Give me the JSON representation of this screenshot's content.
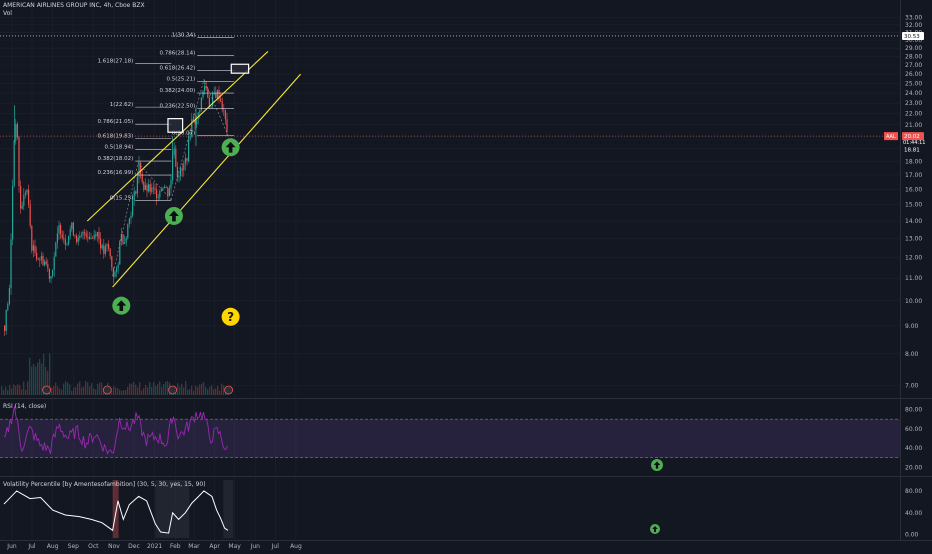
{
  "header": {
    "title": "AMERICAN AIRLINES GROUP INC, 4h, Cboe BZX",
    "volume_label": "Vol"
  },
  "colors": {
    "background": "#131722",
    "grid": "#1e222d",
    "up": "#26a69a",
    "down": "#ef5350",
    "channel": "#f5e63a",
    "fib": "#d1d4dc",
    "rsi": "#9c27b0",
    "rsi_band": "#7e57c2",
    "vp": "#ffffff",
    "arrow": "#4caf50",
    "question": "#ffd600"
  },
  "chart_data": [
    {
      "type": "candlestick",
      "title": "AMERICAN AIRLINES GROUP INC, 4h, Cboe BZX",
      "y_scale": "log",
      "ylim": [
        6.4,
        33.5
      ],
      "y_ticks": [
        7.0,
        8.0,
        9.0,
        10.0,
        11.0,
        12.0,
        13.0,
        14.0,
        15.0,
        16.0,
        17.0,
        18.0,
        19.0,
        20.0,
        21.0,
        22.0,
        23.0,
        24.0,
        25.0,
        26.0,
        27.0,
        28.0,
        29.0,
        30.0,
        31.0,
        32.0,
        33.0
      ],
      "x_ticks": [
        "Jun",
        "Jul",
        "Aug",
        "Sep",
        "Oct",
        "Nov",
        "Dec",
        "2021",
        "Feb",
        "Mar",
        "Apr",
        "May",
        "Jun",
        "Jul",
        "Aug"
      ],
      "price_series": {
        "name": "AAL",
        "points": [
          [
            "2020-05-20",
            9.0
          ],
          [
            "2020-05-28",
            10.6
          ],
          [
            "2020-06-05",
            22.0
          ],
          [
            "2020-06-08",
            19.8
          ],
          [
            "2020-06-12",
            14.5
          ],
          [
            "2020-06-22",
            16.2
          ],
          [
            "2020-06-30",
            12.5
          ],
          [
            "2020-07-10",
            12.0
          ],
          [
            "2020-07-20",
            11.8
          ],
          [
            "2020-07-28",
            11.0
          ],
          [
            "2020-08-05",
            12.6
          ],
          [
            "2020-08-10",
            13.7
          ],
          [
            "2020-08-20",
            12.8
          ],
          [
            "2020-08-28",
            13.7
          ],
          [
            "2020-09-08",
            12.8
          ],
          [
            "2020-09-18",
            13.4
          ],
          [
            "2020-09-28",
            13.0
          ],
          [
            "2020-10-05",
            13.5
          ],
          [
            "2020-10-15",
            12.2
          ],
          [
            "2020-10-22",
            12.6
          ],
          [
            "2020-10-30",
            11.2
          ],
          [
            "2020-11-06",
            11.3
          ],
          [
            "2020-11-09",
            13.2
          ],
          [
            "2020-11-16",
            12.9
          ],
          [
            "2020-11-24",
            14.3
          ],
          [
            "2020-12-03",
            16.1
          ],
          [
            "2020-12-08",
            17.8
          ],
          [
            "2020-12-15",
            16.0
          ],
          [
            "2020-12-22",
            16.0
          ],
          [
            "2021-01-05",
            15.7
          ],
          [
            "2021-01-12",
            16.4
          ],
          [
            "2021-01-20",
            15.8
          ],
          [
            "2021-01-26",
            16.8
          ],
          [
            "2021-01-28",
            20.2
          ],
          [
            "2021-02-02",
            17.1
          ],
          [
            "2021-02-10",
            17.2
          ],
          [
            "2021-02-18",
            18.5
          ],
          [
            "2021-02-26",
            21.8
          ],
          [
            "2021-03-04",
            21.2
          ],
          [
            "2021-03-10",
            23.0
          ],
          [
            "2021-03-16",
            24.8
          ],
          [
            "2021-03-19",
            24.4
          ],
          [
            "2021-03-25",
            22.4
          ],
          [
            "2021-03-29",
            23.8
          ],
          [
            "2021-04-06",
            24.0
          ],
          [
            "2021-04-12",
            22.6
          ],
          [
            "2021-04-19",
            20.5
          ],
          [
            "2021-04-21",
            20.02
          ]
        ]
      },
      "channel": {
        "upper": [
          [
            "2020-09-22",
            14.0
          ],
          [
            "2021-06-20",
            28.6
          ]
        ],
        "lower": [
          [
            "2020-10-30",
            10.6
          ],
          [
            "2021-08-08",
            26.0
          ]
        ]
      },
      "fib_sets": [
        {
          "x_range": [
            "2020-12-03",
            "2021-01-26"
          ],
          "levels": [
            {
              "label": "1(22.62)",
              "value": 22.62
            },
            {
              "label": "0.786(21.05)",
              "value": 21.05
            },
            {
              "label": "0.618(19.83)",
              "value": 19.83
            },
            {
              "label": "0.5(18.94)",
              "value": 18.94
            },
            {
              "label": "0.382(18.02)",
              "value": 18.02
            },
            {
              "label": "0.236(16.99)",
              "value": 16.99
            },
            {
              "label": "0(15.25)",
              "value": 15.25
            }
          ],
          "extension": {
            "label": "1.618(27.18)",
            "value": 27.18
          }
        },
        {
          "x_range": [
            "2021-03-06",
            "2021-04-30"
          ],
          "levels": [
            {
              "label": "1(30.34)",
              "value": 30.34
            },
            {
              "label": "0.786(28.14)",
              "value": 28.14
            },
            {
              "label": "0.618(26.42)",
              "value": 26.42
            },
            {
              "label": "0.5(25.21)",
              "value": 25.21
            },
            {
              "label": "0.382(24.00)",
              "value": 24.0
            },
            {
              "label": "0.236(22.50)",
              "value": 22.5
            },
            {
              "label": "0(20.07)",
              "value": 20.07
            }
          ]
        }
      ],
      "target_boxes": [
        {
          "x_range": [
            "2021-01-21",
            "2021-02-12"
          ],
          "y_range": [
            20.35,
            21.55
          ]
        },
        {
          "x_range": [
            "2021-04-26",
            "2021-05-22"
          ],
          "y_range": [
            26.1,
            27.1
          ]
        }
      ],
      "buy_arrows": [
        [
          "2020-11-09",
          9.8
        ],
        [
          "2021-01-27",
          14.3
        ],
        [
          "2021-04-22",
          19.1
        ]
      ],
      "question_mark": [
        "2021-04-22",
        9.35
      ],
      "earnings_markers": [
        "2020-07-23",
        "2020-10-22",
        "2021-01-28",
        "2021-04-22"
      ],
      "price_labels": [
        {
          "symbol": "AAL",
          "value": "20.02",
          "countdown": "01:44:11",
          "y": 20.02
        },
        {
          "value": "18.81",
          "y": 18.93
        },
        {
          "value": "30.53",
          "y": 30.53
        }
      ]
    },
    {
      "type": "line",
      "title": "RSI (14, close)",
      "ylim": [
        12,
        90
      ],
      "y_ticks": [
        20.0,
        40.0,
        60.0,
        80.0
      ],
      "band": [
        30,
        70
      ],
      "series": [
        {
          "name": "RSI (14, close)",
          "points": [
            [
              "2020-05-20",
              45
            ],
            [
              "2020-06-05",
              83
            ],
            [
              "2020-06-15",
              40
            ],
            [
              "2020-06-28",
              60
            ],
            [
              "2020-07-12",
              44
            ],
            [
              "2020-07-28",
              38
            ],
            [
              "2020-08-10",
              64
            ],
            [
              "2020-08-24",
              50
            ],
            [
              "2020-09-06",
              58
            ],
            [
              "2020-09-20",
              45
            ],
            [
              "2020-10-04",
              55
            ],
            [
              "2020-10-18",
              40
            ],
            [
              "2020-10-30",
              34
            ],
            [
              "2020-11-09",
              70
            ],
            [
              "2020-11-22",
              60
            ],
            [
              "2020-12-06",
              72
            ],
            [
              "2020-12-18",
              48
            ],
            [
              "2021-01-05",
              52
            ],
            [
              "2021-01-20",
              44
            ],
            [
              "2021-01-28",
              77
            ],
            [
              "2021-02-06",
              52
            ],
            [
              "2021-02-22",
              64
            ],
            [
              "2021-03-04",
              76
            ],
            [
              "2021-03-16",
              74
            ],
            [
              "2021-03-25",
              50
            ],
            [
              "2021-04-06",
              58
            ],
            [
              "2021-04-14",
              45
            ],
            [
              "2021-04-21",
              36
            ]
          ]
        }
      ]
    },
    {
      "type": "line",
      "title": "Volatility Percentile [by Amentesofambition] (30, 5, 30, yes, 15, 90)",
      "ylim": [
        -6,
        100
      ],
      "y_ticks": [
        0.0,
        40.0,
        80.0
      ],
      "series": [
        {
          "name": "Volatility Percentile",
          "points": [
            [
              "2020-05-20",
              56
            ],
            [
              "2020-06-08",
              80
            ],
            [
              "2020-06-28",
              66
            ],
            [
              "2020-07-14",
              68
            ],
            [
              "2020-08-01",
              45
            ],
            [
              "2020-08-20",
              36
            ],
            [
              "2020-09-10",
              33
            ],
            [
              "2020-09-28",
              28
            ],
            [
              "2020-10-14",
              22
            ],
            [
              "2020-10-30",
              8
            ],
            [
              "2020-11-07",
              62
            ],
            [
              "2020-11-15",
              28
            ],
            [
              "2020-11-24",
              55
            ],
            [
              "2020-12-08",
              70
            ],
            [
              "2020-12-20",
              62
            ],
            [
              "2021-01-02",
              20
            ],
            [
              "2021-01-10",
              5
            ],
            [
              "2021-01-22",
              3
            ],
            [
              "2021-01-28",
              40
            ],
            [
              "2021-02-06",
              28
            ],
            [
              "2021-02-16",
              40
            ],
            [
              "2021-02-26",
              58
            ],
            [
              "2021-03-08",
              70
            ],
            [
              "2021-03-16",
              80
            ],
            [
              "2021-03-28",
              70
            ],
            [
              "2021-04-04",
              45
            ],
            [
              "2021-04-10",
              30
            ],
            [
              "2021-04-16",
              12
            ],
            [
              "2021-04-21",
              8
            ]
          ]
        }
      ]
    }
  ]
}
